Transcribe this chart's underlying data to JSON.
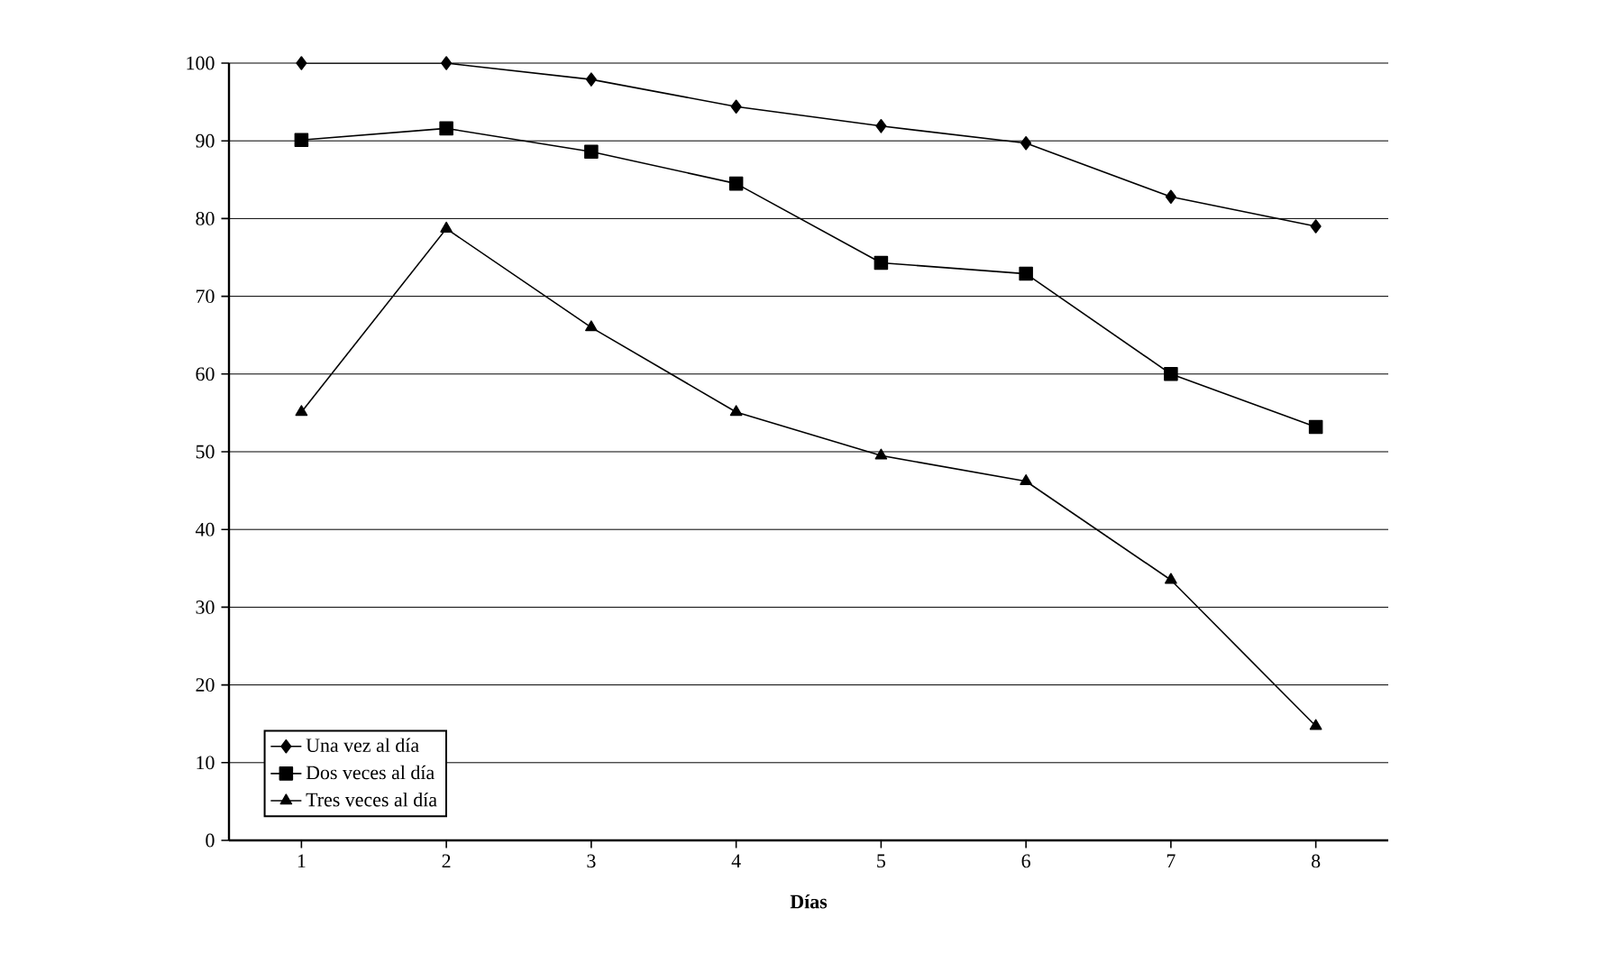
{
  "chart_data": {
    "type": "line",
    "xlabel": "Días",
    "categories": [
      "1",
      "2",
      "3",
      "4",
      "5",
      "6",
      "7",
      "8"
    ],
    "series": [
      {
        "name": "Una vez al día",
        "color": "#000000",
        "marker": "diamond",
        "values": [
          100,
          100,
          97.9,
          94.4,
          91.9,
          89.7,
          82.8,
          79.0
        ]
      },
      {
        "name": "Dos veces al día",
        "color": "#000000",
        "marker": "square",
        "values": [
          90.1,
          91.6,
          88.6,
          84.5,
          74.3,
          72.9,
          60.0,
          53.2
        ]
      },
      {
        "name": "Tres veces al día",
        "color": "#000000",
        "marker": "triangle",
        "values": [
          55.1,
          78.7,
          66.0,
          55.1,
          49.5,
          46.2,
          33.5,
          14.7
        ]
      }
    ],
    "ylim": [
      0,
      100
    ],
    "yticks": [
      0,
      10,
      20,
      30,
      40,
      50,
      60,
      70,
      80,
      90,
      100
    ],
    "grid": "y",
    "legend": "bottom left",
    "line_style": "solid"
  }
}
